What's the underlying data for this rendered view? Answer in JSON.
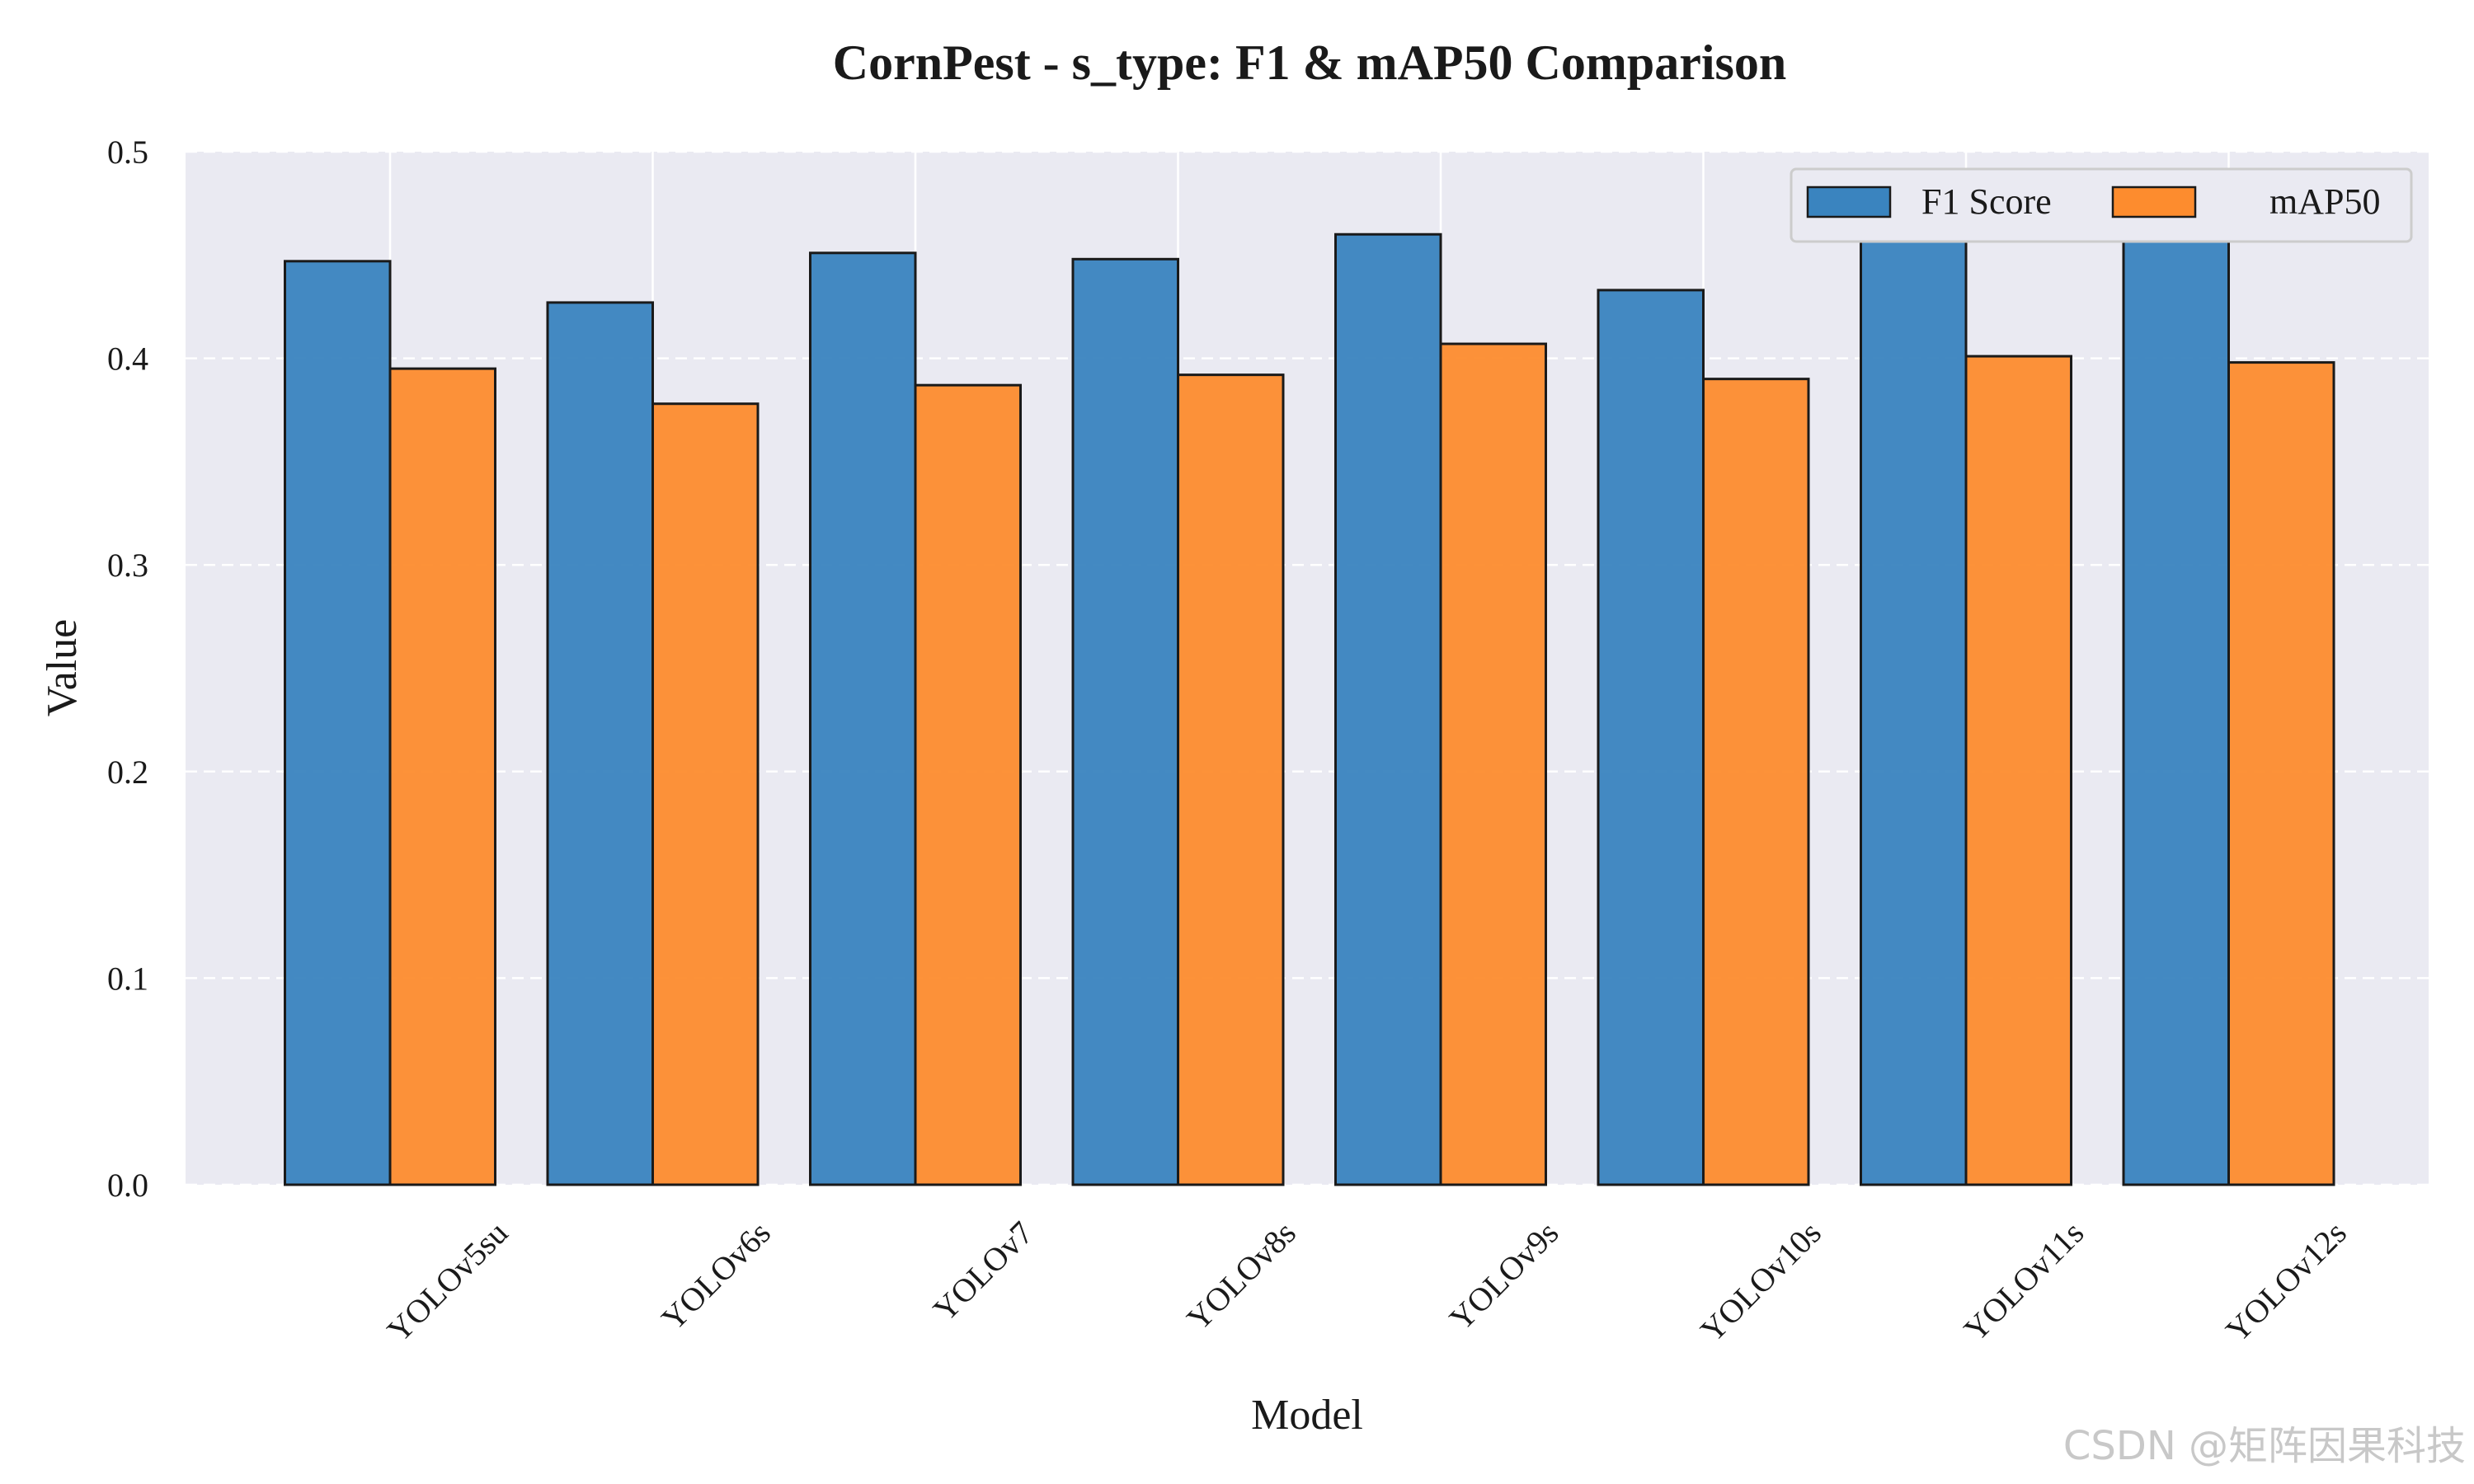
{
  "chart_data": {
    "type": "bar",
    "title": "CornPest - s_type: F1 & mAP50 Comparison",
    "xlabel": "Model",
    "ylabel": "Value",
    "categories": [
      "YOLOv5su",
      "YOLOv6s",
      "YOLOv7",
      "YOLOv8s",
      "YOLOv9s",
      "YOLOv10s",
      "YOLOv11s",
      "YOLOv12s"
    ],
    "series": [
      {
        "name": "F1 Score",
        "color": "#3a84bf",
        "values": [
          0.447,
          0.427,
          0.451,
          0.448,
          0.46,
          0.433,
          0.461,
          0.457
        ]
      },
      {
        "name": "mAP50",
        "color": "#fd8c2e",
        "values": [
          0.395,
          0.378,
          0.387,
          0.392,
          0.407,
          0.39,
          0.401,
          0.398
        ]
      }
    ],
    "ylim": [
      0,
      0.5
    ],
    "yticks": [
      "0.0",
      "0.1",
      "0.2",
      "0.3",
      "0.4",
      "0.5"
    ],
    "grid": true,
    "legend_position": "top-right",
    "background_color": "#eaeaf2"
  },
  "watermark": "CSDN @矩阵因果科技"
}
